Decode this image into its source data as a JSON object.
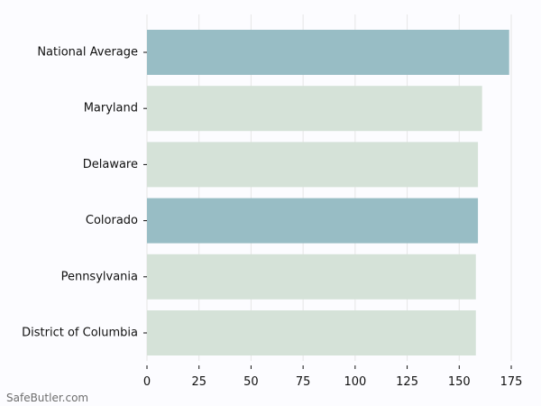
{
  "watermark": "SafeButler.com",
  "colors": {
    "background": "#fcfcff",
    "highlight_bar": "#98bdc5",
    "default_bar": "#d5e2d8",
    "grid": "#e6e6e6",
    "axis": "#111111"
  },
  "chart_data": {
    "type": "bar",
    "orientation": "horizontal",
    "categories": [
      "National Average",
      "Maryland",
      "Delaware",
      "Colorado",
      "Pennsylvania",
      "District of Columbia"
    ],
    "values": [
      174,
      161,
      159,
      159,
      158,
      158
    ],
    "highlighted": [
      true,
      false,
      false,
      true,
      false,
      false
    ],
    "xticks": [
      0,
      25,
      50,
      75,
      100,
      125,
      150,
      175
    ],
    "xlim": [
      0,
      175
    ],
    "grid": true,
    "title": "",
    "xlabel": "",
    "ylabel": ""
  }
}
